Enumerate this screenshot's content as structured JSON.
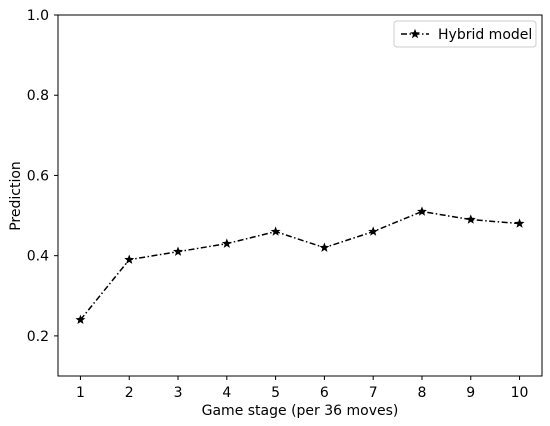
{
  "chart_data": {
    "type": "line",
    "x": [
      1,
      2,
      3,
      4,
      5,
      6,
      7,
      8,
      9,
      10
    ],
    "series": [
      {
        "name": "Hybrid model",
        "values": [
          0.24,
          0.39,
          0.41,
          0.43,
          0.46,
          0.42,
          0.46,
          0.51,
          0.49,
          0.48
        ],
        "marker": "star",
        "linestyle": "dash-dot",
        "color": "#000000"
      }
    ],
    "xlabel": "Game stage (per 36 moves)",
    "ylabel": "Prediction",
    "xticks": [
      "1",
      "2",
      "3",
      "4",
      "5",
      "6",
      "7",
      "8",
      "9",
      "10"
    ],
    "yticks": [
      "0.2",
      "0.4",
      "0.6",
      "0.8",
      "1.0"
    ],
    "ytick_values": [
      0.2,
      0.4,
      0.6,
      0.8,
      1.0
    ],
    "xlim": [
      0.54,
      10.46
    ],
    "ylim": [
      0.1,
      1.0
    ],
    "grid": false,
    "legend_position": "top-right"
  }
}
